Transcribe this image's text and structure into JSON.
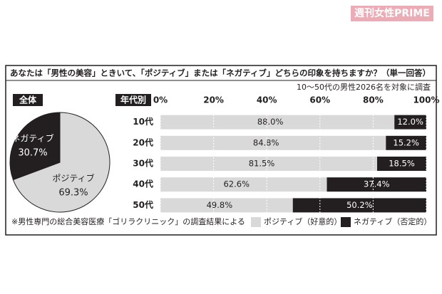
{
  "watermark": "週刊女性PRIME",
  "title": "あなたは「男性の美容」ときいて、「ポジティブ」または「ネガティブ」どちらの印象を持ちますか？（単一回答）",
  "subtitle": "10～50代の男性2026名を対象に調査",
  "source": "※男性専門の総合美容医療「ゴリラクリニック」の調査結果による",
  "chart_data": [
    {
      "type": "pie",
      "title": "全体",
      "categories": [
        "ポジティブ",
        "ネガティブ"
      ],
      "values": [
        69.3,
        30.7
      ],
      "value_labels": [
        "69.3%",
        "30.7%"
      ],
      "colors": [
        "#d9d9d9",
        "#231f20"
      ]
    },
    {
      "type": "stacked-barh",
      "title": "年代別",
      "categories": [
        "10代",
        "20代",
        "30代",
        "40代",
        "50代"
      ],
      "series": [
        {
          "name": "ポジティブ（好意的）",
          "color": "#d9d9d9",
          "values": [
            88.0,
            84.8,
            81.5,
            62.6,
            49.8
          ],
          "value_labels": [
            "88.0%",
            "84.8%",
            "81.5%",
            "62.6%",
            "49.8%"
          ]
        },
        {
          "name": "ネガティブ（否定的）",
          "color": "#231f20",
          "values": [
            12.0,
            15.2,
            18.5,
            37.4,
            50.2
          ],
          "value_labels": [
            "12.0%",
            "15.2%",
            "18.5%",
            "37.4%",
            "50.2%"
          ]
        }
      ],
      "xlim": [
        0,
        100
      ],
      "xticks": [
        {
          "value": 0,
          "label": "0%"
        },
        {
          "value": 20,
          "label": "20%"
        },
        {
          "value": 40,
          "label": "40%"
        },
        {
          "value": 60,
          "label": "60%"
        },
        {
          "value": 80,
          "label": "80%"
        },
        {
          "value": 100,
          "label": "100%"
        }
      ],
      "grid": true
    }
  ]
}
